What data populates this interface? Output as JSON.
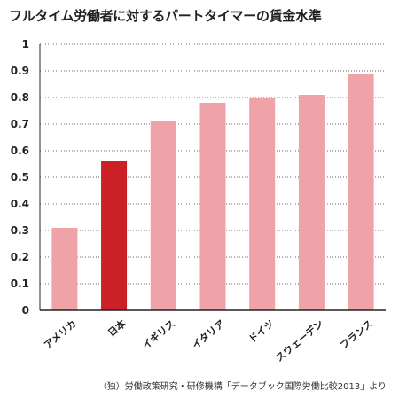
{
  "chart_data": {
    "type": "bar",
    "title": "フルタイム労働者に対するパートタイマーの賃金水準",
    "categories": [
      "アメリカ",
      "日本",
      "イギリス",
      "イタリア",
      "ドイツ",
      "スウェーデン",
      "フランス"
    ],
    "values": [
      0.31,
      0.56,
      0.71,
      0.78,
      0.8,
      0.81,
      0.89
    ],
    "highlight_category": "日本",
    "colors": {
      "bar": "#efa3a8",
      "highlight": "#cc2027",
      "grid": "#666666",
      "axis": "#222222"
    },
    "ylim": [
      0,
      1
    ],
    "yticks": [
      "0",
      "0.1",
      "0.2",
      "0.3",
      "0.4",
      "0.5",
      "0.6",
      "0.7",
      "0.8",
      "0.9",
      "1"
    ],
    "grid": "horizontal dotted",
    "xlabel": "",
    "ylabel": ""
  },
  "source": "（独）労働政策研究・研修機構「データブック国際労働比較2013」より"
}
